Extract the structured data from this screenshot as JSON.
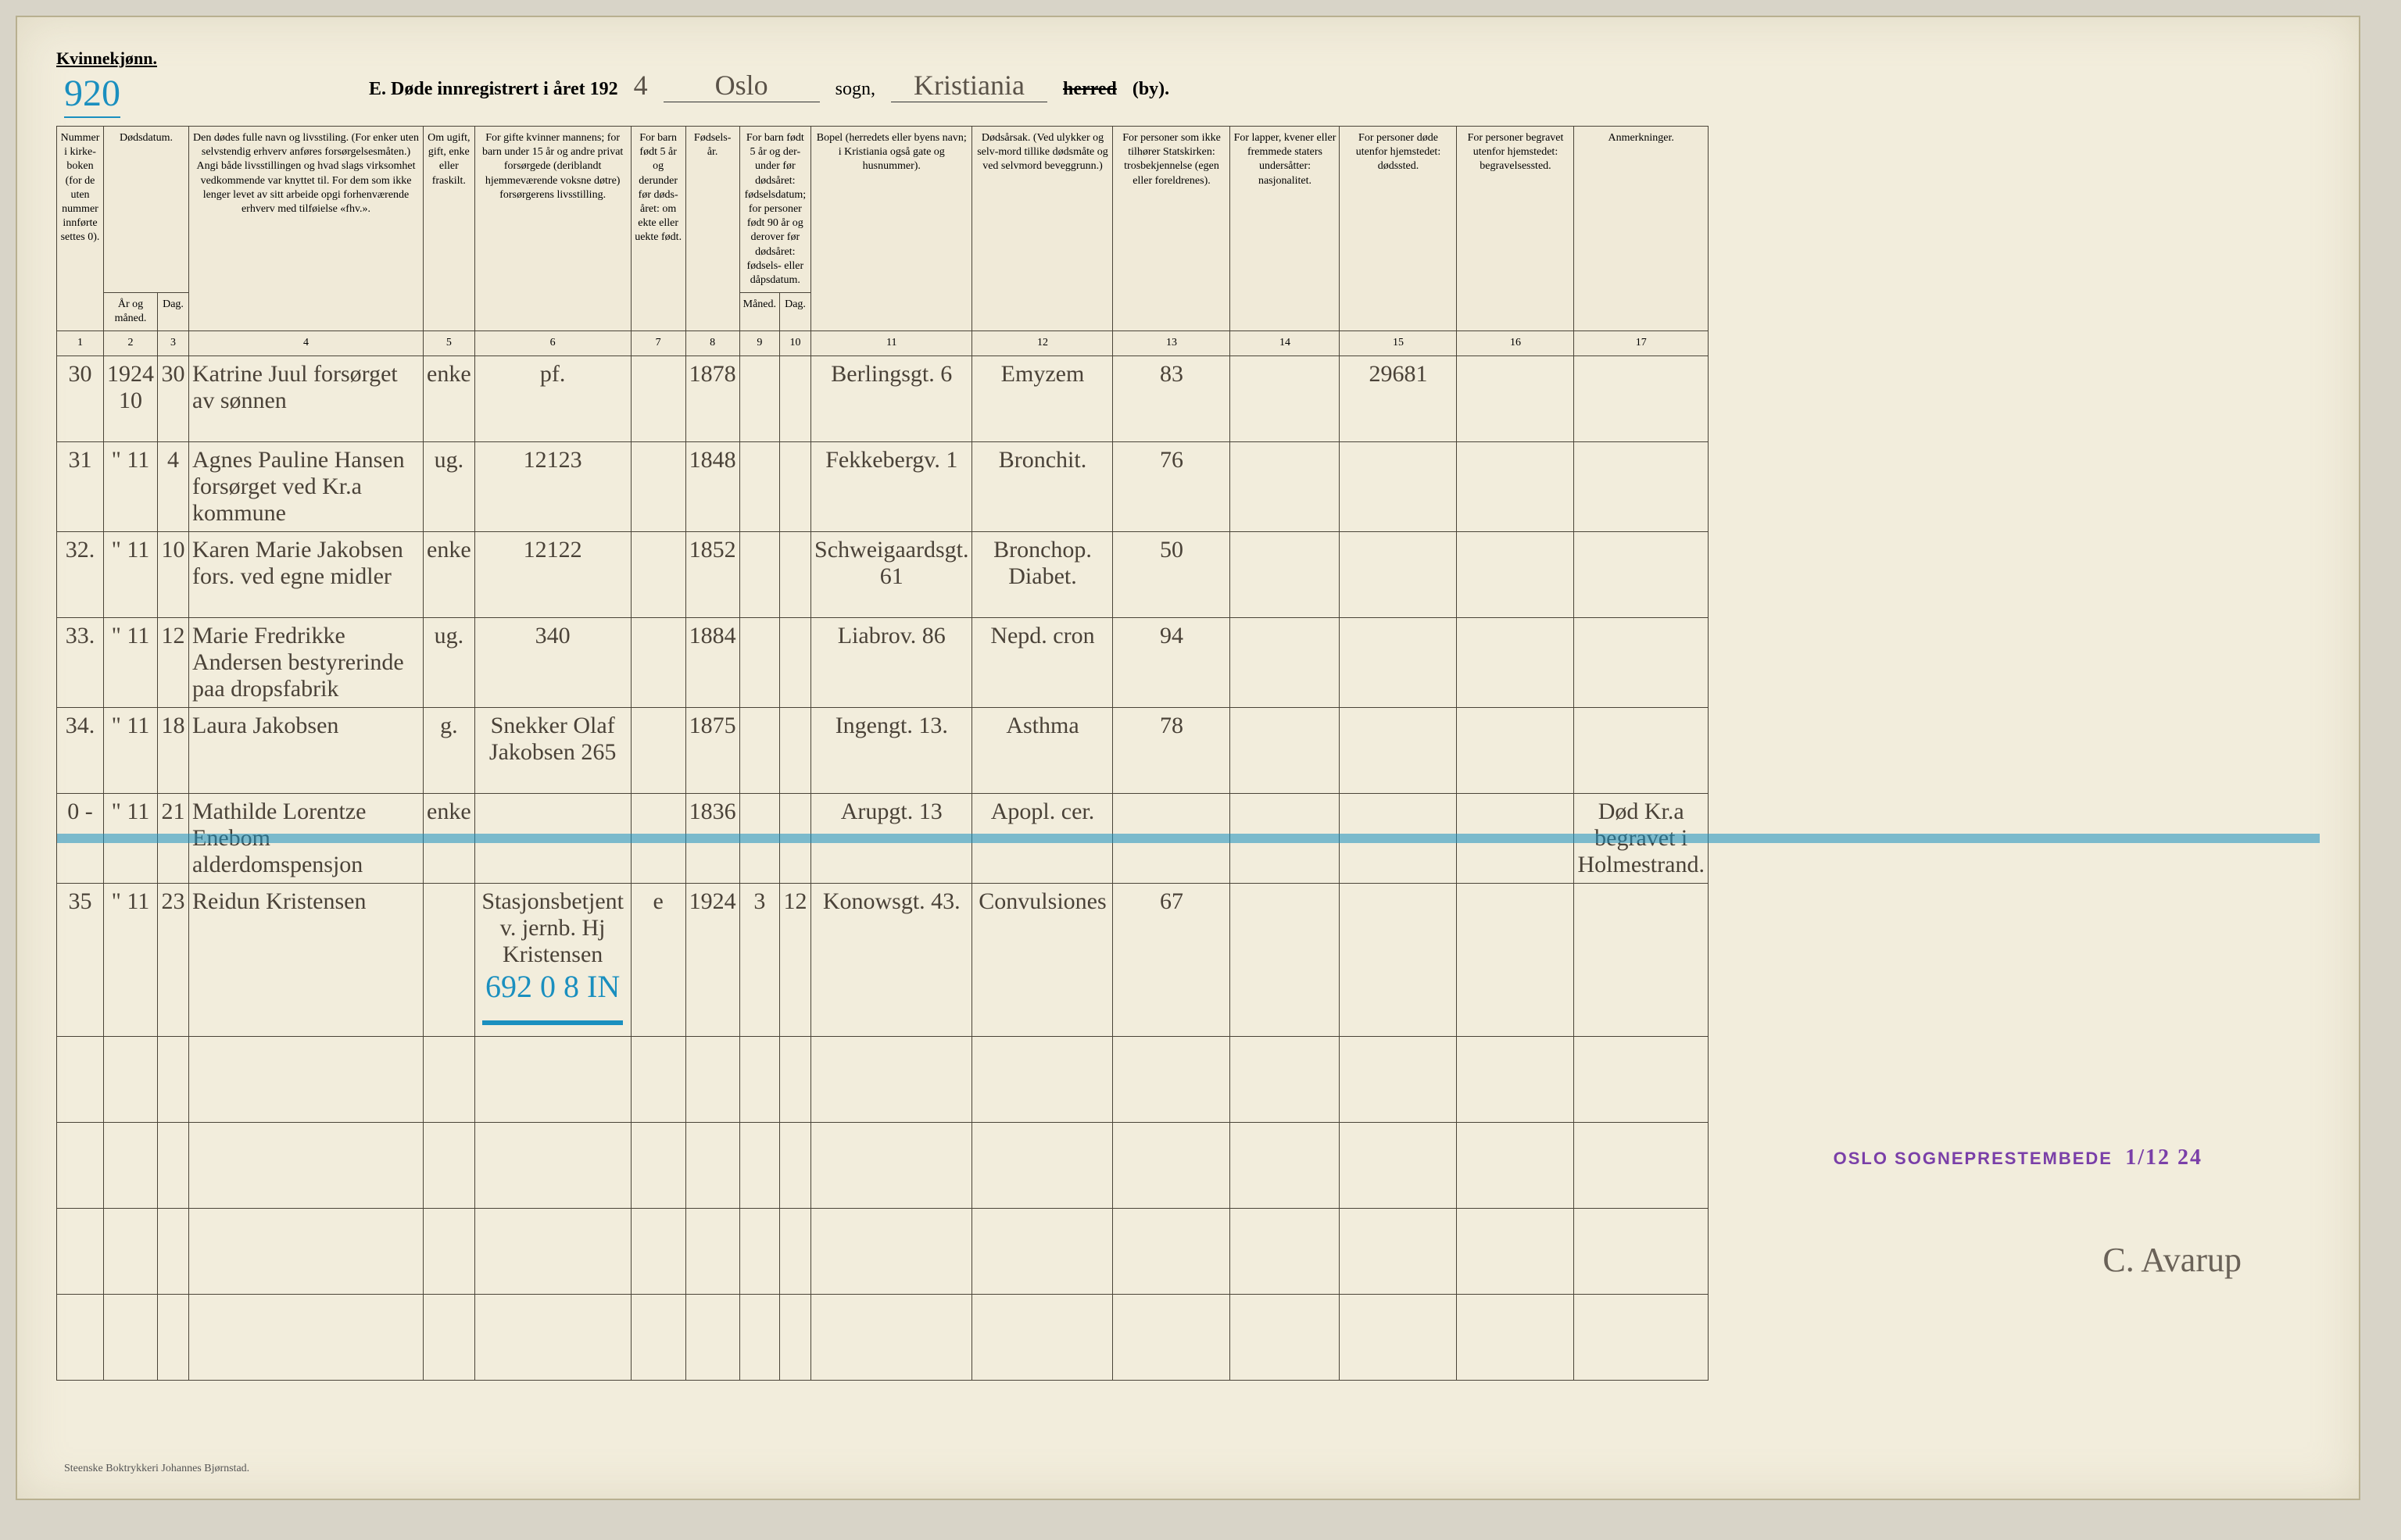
{
  "header": {
    "gender_label": "Kvinnekjønn.",
    "page_number": "920",
    "title_prefix": "E.  Døde innregistrert i året 192",
    "year_suffix": "4",
    "parish": "Oslo",
    "sogn_label": "sogn,",
    "town": "Kristiania",
    "herred_struck": "herred",
    "by_label": "(by)."
  },
  "columns": {
    "c1": "Nummer i kirke-boken (for de uten nummer innførte settes 0).",
    "c2_3_group": "Dødsdatum.",
    "c2": "År og måned.",
    "c3": "Dag.",
    "c4": "Den dødes fulle navn og livsstiling. (For enker uten selvstendig erhverv anføres forsørgelsesmåten.) Angi både livsstillingen og hvad slags virksomhet vedkommende var knyttet til. For dem som ikke lenger levet av sitt arbeide opgi forhenværende erhverv med tilføielse «fhv.».",
    "c5": "Om ugift, gift, enke eller fraskilt.",
    "c6": "For gifte kvinner mannens; for barn under 15 år og andre privat forsørgede (deriblandt hjemmeværende voksne døtre) forsørgerens livsstilling.",
    "c7": "For barn født 5 år og derunder før døds-året: om ekte eller uekte født.",
    "c8": "Fødsels-år.",
    "c9_10_group": "For barn født 5 år og der-under før dødsåret: fødselsdatum; for personer født 90 år og derover før dødsåret: fødsels- eller dåpsdatum.",
    "c9": "Måned.",
    "c10": "Dag.",
    "c11": "Bopel (herredets eller byens navn; i Kristiania også gate og husnummer).",
    "c12": "Dødsårsak. (Ved ulykker og selv-mord tillike dødsmåte og ved selvmord beveggrunn.)",
    "c13": "For personer som ikke tilhører Statskirken: trosbekjennelse (egen eller foreldrenes).",
    "c14": "For lapper, kvener eller fremmede staters undersåtter: nasjonalitet.",
    "c15": "For personer døde utenfor hjemstedet: dødssted.",
    "c16": "For personer begravet utenfor hjemstedet: begravelsessted.",
    "c17": "Anmerkninger.",
    "nums": [
      "1",
      "2",
      "3",
      "4",
      "5",
      "6",
      "7",
      "8",
      "9",
      "10",
      "11",
      "12",
      "13",
      "14",
      "15",
      "16",
      "17"
    ]
  },
  "rows": [
    {
      "num": "30",
      "year_month": "1924 10",
      "day": "30",
      "name": "Katrine Juul  forsørget av sønnen",
      "status": "enke",
      "provider": "pf.",
      "birth_year": "1878",
      "residence": "Berlingsgt. 6",
      "cause": "Emyzem",
      "col13": "83",
      "col15": "29681",
      "mark": "✓ ✗"
    },
    {
      "num": "31",
      "year_month": "\" 11",
      "day": "4",
      "name": "Agnes Pauline Hansen  forsørget ved Kr.a kommune",
      "status": "ug.",
      "provider": "12123",
      "birth_year": "1848",
      "residence": "Fekkebergv. 1",
      "cause": "Bronchit.",
      "col13": "76",
      "mark": "✓ ✗"
    },
    {
      "num": "32.",
      "year_month": "\" 11",
      "day": "10",
      "name": "Karen Marie Jakobsen  fors. ved egne midler",
      "status": "enke",
      "provider": "12122",
      "birth_year": "1852",
      "residence": "Schweigaardsgt. 61",
      "cause": "Bronchop. Diabet.",
      "col13": "50",
      "mark": "✓ ✗"
    },
    {
      "num": "33.",
      "year_month": "\" 11",
      "day": "12",
      "name": "Marie Fredrikke Andersen  bestyrerinde paa dropsfabrik",
      "status": "ug.",
      "provider": "340",
      "birth_year": "1884",
      "residence": "Liabrov. 86",
      "cause": "Nepd. cron",
      "col13": "94",
      "mark": "✓ ✗"
    },
    {
      "num": "34.",
      "year_month": "\" 11",
      "day": "18",
      "name": "Laura Jakobsen",
      "status": "g.",
      "provider": "Snekker Olaf Jakobsen  265",
      "birth_year": "1875",
      "residence": "Ingengt. 13.",
      "cause": "Asthma",
      "col13": "78",
      "mark": "✓ ✗"
    },
    {
      "num": "0 -",
      "year_month": "\" 11",
      "day": "21",
      "name": "Mathilde Lorentze Enebom  alderdomspensjon",
      "status": "enke",
      "provider": "",
      "birth_year": "1836",
      "residence": "Arupgt. 13",
      "cause": "Apopl. cer.",
      "col17": "Død Kr.a begravet i Holmestrand.",
      "crossed": true
    },
    {
      "num": "35",
      "year_month": "\" 11",
      "day": "23",
      "name": "Reidun Kristensen",
      "status": "",
      "provider": "Stasjonsbetjent v. jernb. Hj Kristensen",
      "provider_overlay": "692  0 8 IN",
      "ekte": "e",
      "birth_year": "1924",
      "month": "3",
      "bday": "12",
      "residence": "Konowsgt. 43.",
      "cause": "Convulsiones",
      "col13": "67",
      "mark": "✓ ✗"
    }
  ],
  "stamp": {
    "text": "OSLO SOGNEPRESTEMBEDE",
    "date": "1/12 24"
  },
  "signature": "C. Avarup",
  "footer": "Steenske Boktrykkeri Johannes Bjørnstad."
}
